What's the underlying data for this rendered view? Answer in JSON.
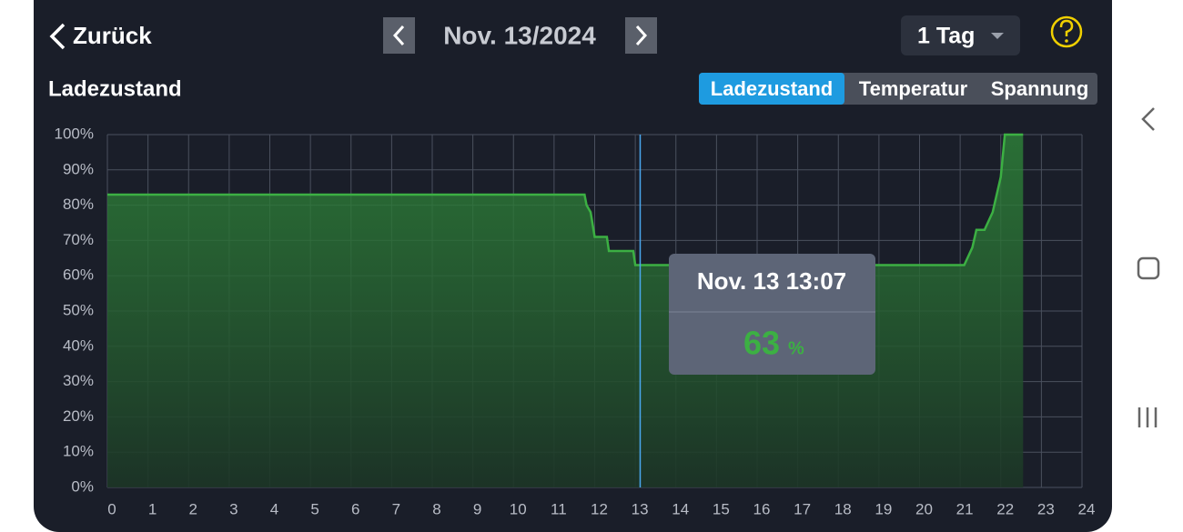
{
  "header": {
    "back": "Zurück",
    "date": "Nov. 13/2024",
    "range": "1 Tag"
  },
  "tabs": {
    "items": [
      "Ladezustand",
      "Temperatur",
      "Spannung"
    ],
    "active": 0
  },
  "chart_data": {
    "type": "area",
    "title": "Ladezustand",
    "x": [
      0,
      11.75,
      11.8,
      11.9,
      12.0,
      12.3,
      12.35,
      12.95,
      13.0,
      21.1,
      21.3,
      21.4,
      21.6,
      21.8,
      22.0,
      22.1,
      22.55
    ],
    "values": [
      83,
      83,
      80,
      78,
      71,
      71,
      67,
      67,
      63,
      63,
      68,
      73,
      73,
      78,
      88,
      100,
      100
    ],
    "color": "#3cb043",
    "xlim": [
      0,
      24
    ],
    "ylim": [
      0,
      100
    ],
    "xticks": [
      0,
      1,
      2,
      3,
      4,
      5,
      6,
      7,
      8,
      9,
      10,
      11,
      12,
      13,
      14,
      15,
      16,
      17,
      18,
      19,
      20,
      21,
      22,
      23,
      24
    ],
    "yticks": [
      {
        "value": 0,
        "label": "0%"
      },
      {
        "value": 10,
        "label": "10%"
      },
      {
        "value": 20,
        "label": "20%"
      },
      {
        "value": 30,
        "label": "30%"
      },
      {
        "value": 40,
        "label": "40%"
      },
      {
        "value": 50,
        "label": "50%"
      },
      {
        "value": 60,
        "label": "60%"
      },
      {
        "value": 70,
        "label": "70%"
      },
      {
        "value": 80,
        "label": "80%"
      },
      {
        "value": 90,
        "label": "90%"
      },
      {
        "value": 100,
        "label": "100%"
      }
    ],
    "grid": true,
    "cursor": {
      "x": 13.12,
      "label": "Nov. 13 13:07",
      "value": 63,
      "unit": "%"
    }
  }
}
